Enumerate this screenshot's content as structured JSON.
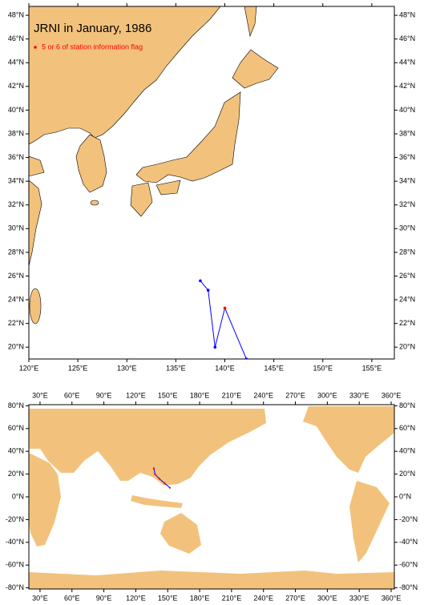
{
  "top_map": {
    "title": "JRNI in January, 1986",
    "legend": "5 or 6 of station information flag",
    "xlim": [
      120,
      157.3
    ],
    "ylim": [
      19,
      48.75
    ],
    "xticks": [
      {
        "value": 120,
        "label": "120°E"
      },
      {
        "value": 125,
        "label": "125°E"
      },
      {
        "value": 130,
        "label": "130°E"
      },
      {
        "value": 135,
        "label": "135°E"
      },
      {
        "value": 140,
        "label": "140°E"
      },
      {
        "value": 145,
        "label": "145°E"
      },
      {
        "value": 150,
        "label": "150°E"
      },
      {
        "value": 155,
        "label": "155°E"
      }
    ],
    "yticks": [
      {
        "value": 20,
        "label": "20°N"
      },
      {
        "value": 22,
        "label": "22°N"
      },
      {
        "value": 24,
        "label": "24°N"
      },
      {
        "value": 26,
        "label": "26°N"
      },
      {
        "value": 28,
        "label": "28°N"
      },
      {
        "value": 30,
        "label": "30°N"
      },
      {
        "value": 32,
        "label": "32°N"
      },
      {
        "value": 34,
        "label": "34°N"
      },
      {
        "value": 36,
        "label": "36°N"
      },
      {
        "value": 38,
        "label": "38°N"
      },
      {
        "value": 40,
        "label": "40°N"
      },
      {
        "value": 42,
        "label": "42°N"
      },
      {
        "value": 44,
        "label": "44°N"
      },
      {
        "value": 46,
        "label": "46°N"
      },
      {
        "value": 48,
        "label": "48°N"
      }
    ],
    "track": {
      "lon": [
        137.5,
        138.3,
        139.0,
        140.0,
        142.2
      ],
      "lat": [
        25.6,
        24.8,
        20.0,
        23.3,
        19.0
      ],
      "flagged": [
        false,
        false,
        false,
        true,
        false
      ],
      "line_color": "#0000ff",
      "point_color": "#0000ff",
      "flag_color": "#ff0000"
    }
  },
  "bottom_map": {
    "xlim": [
      19.5,
      363
    ],
    "ylim": [
      -81,
      81
    ],
    "xticks": [
      {
        "value": 30,
        "label": "30°E"
      },
      {
        "value": 60,
        "label": "60°E"
      },
      {
        "value": 90,
        "label": "90°E"
      },
      {
        "value": 120,
        "label": "120°E"
      },
      {
        "value": 150,
        "label": "150°E"
      },
      {
        "value": 180,
        "label": "180°E"
      },
      {
        "value": 210,
        "label": "210°E"
      },
      {
        "value": 240,
        "label": "240°E"
      },
      {
        "value": 270,
        "label": "270°E"
      },
      {
        "value": 300,
        "label": "300°E"
      },
      {
        "value": 330,
        "label": "330°E"
      },
      {
        "value": 360,
        "label": "360°E"
      }
    ],
    "yticks": [
      {
        "value": 80,
        "label": "80°N"
      },
      {
        "value": 60,
        "label": "60°N"
      },
      {
        "value": 40,
        "label": "40°N"
      },
      {
        "value": 20,
        "label": "20°N"
      },
      {
        "value": 0,
        "label": "0°N"
      },
      {
        "value": -20,
        "label": "-20°N"
      },
      {
        "value": -40,
        "label": "-40°N"
      },
      {
        "value": -60,
        "label": "-60°N"
      },
      {
        "value": -80,
        "label": "-80°N"
      }
    ],
    "track": {
      "lon": [
        137,
        138,
        142,
        147,
        152
      ],
      "lat": [
        25,
        20,
        16,
        12,
        8
      ],
      "line_color": "#0000ff",
      "point_color": "#ff0000"
    }
  }
}
